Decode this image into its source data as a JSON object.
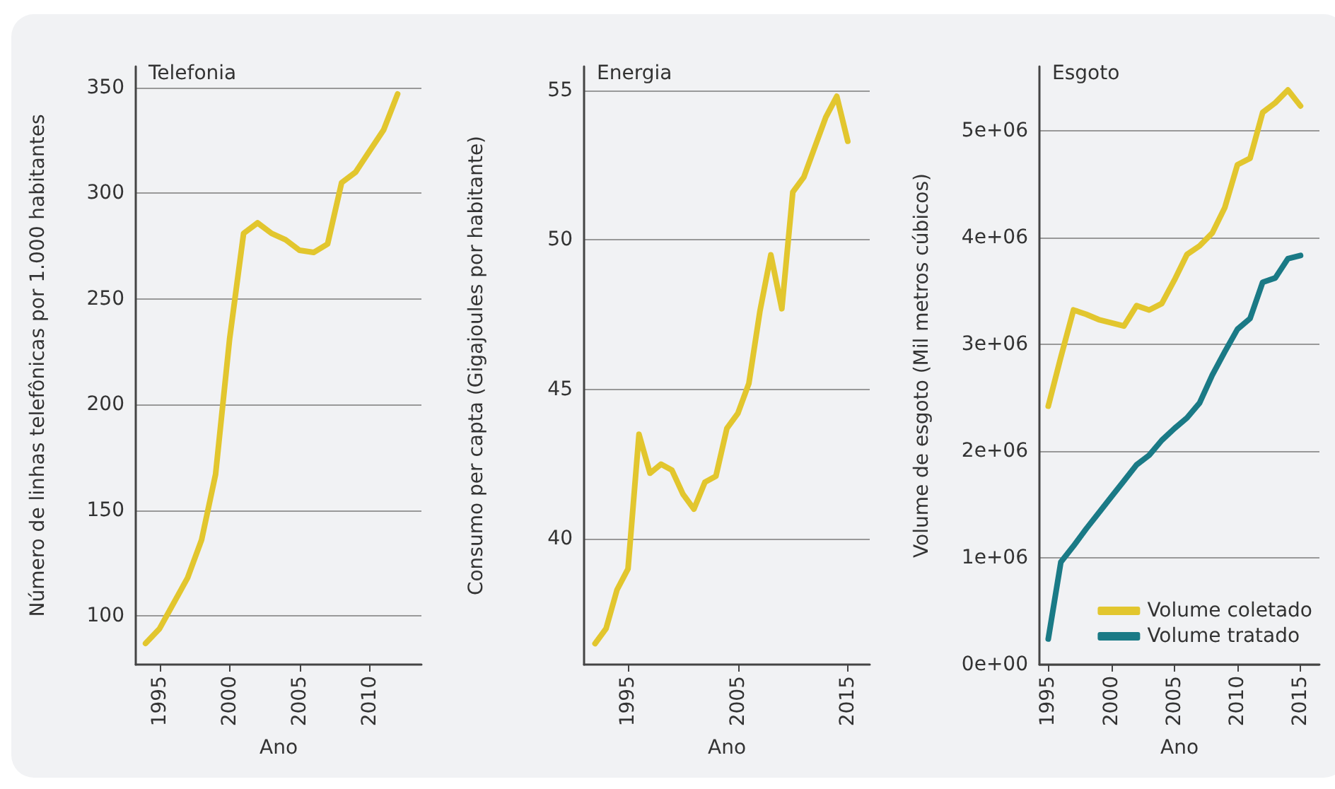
{
  "chart_data": [
    {
      "type": "line",
      "title": "Telefonia",
      "xlabel": "Ano",
      "ylabel": "Número de linhas telefônicas por 1.000 habitantes",
      "x": [
        1994,
        1995,
        1996,
        1997,
        1998,
        1999,
        2000,
        2001,
        2002,
        2003,
        2004,
        2005,
        2006,
        2007,
        2008,
        2009,
        2010,
        2011,
        2012
      ],
      "series": [
        {
          "color": "#e2c62e",
          "values": [
            87,
            94,
            106,
            118,
            136,
            167,
            231,
            281,
            286,
            281,
            278,
            273,
            272,
            276,
            305,
            310,
            320,
            330,
            347
          ]
        }
      ],
      "xlim": [
        1993.3,
        2013.7
      ],
      "xticks": [
        1995,
        2000,
        2005,
        2010
      ],
      "ylim": [
        77,
        360
      ],
      "yticks": [
        100,
        150,
        200,
        250,
        300,
        350
      ],
      "grid": "y",
      "legend": false
    },
    {
      "type": "line",
      "title": "Energia",
      "xlabel": "Ano",
      "ylabel": "Consumo per capta (Gigajoules por habitante)",
      "x": [
        1992,
        1993,
        1994,
        1995,
        1996,
        1997,
        1998,
        1999,
        2000,
        2001,
        2002,
        2003,
        2004,
        2005,
        2006,
        2007,
        2008,
        2009,
        2010,
        2011,
        2012,
        2013,
        2014,
        2015
      ],
      "series": [
        {
          "color": "#e2c62e",
          "values": [
            36.5,
            37.0,
            38.3,
            39.0,
            43.5,
            42.2,
            42.5,
            42.3,
            41.5,
            41.0,
            41.9,
            42.1,
            43.7,
            44.2,
            45.2,
            47.6,
            49.5,
            47.7,
            51.6,
            52.1,
            53.1,
            54.1,
            54.8,
            53.3
          ]
        }
      ],
      "xlim": [
        1991,
        2017
      ],
      "xticks": [
        1995,
        2005,
        2015
      ],
      "ylim": [
        35.8,
        55.8
      ],
      "yticks": [
        40,
        45,
        50,
        55
      ],
      "grid": "y",
      "legend": false
    },
    {
      "type": "line",
      "title": "Esgoto",
      "xlabel": "Ano",
      "ylabel": "Volume de esgoto (Mil metros cúbicos)",
      "x": [
        1995,
        1996,
        1997,
        1998,
        1999,
        2000,
        2001,
        2002,
        2003,
        2004,
        2005,
        2006,
        2007,
        2008,
        2009,
        2010,
        2011,
        2012,
        2013,
        2014,
        2015
      ],
      "series": [
        {
          "name": "Volume coletado",
          "color": "#e2c62e",
          "values": [
            2420000,
            2880000,
            3320000,
            3280000,
            3230000,
            3200000,
            3170000,
            3360000,
            3320000,
            3380000,
            3600000,
            3840000,
            3920000,
            4040000,
            4280000,
            4680000,
            4740000,
            5170000,
            5260000,
            5380000,
            5230000
          ]
        },
        {
          "name": "Volume tratado",
          "color": "#1a7a86",
          "values": [
            240000,
            960000,
            1110000,
            1270000,
            1420000,
            1570000,
            1720000,
            1870000,
            1960000,
            2100000,
            2210000,
            2310000,
            2450000,
            2710000,
            2930000,
            3140000,
            3240000,
            3580000,
            3620000,
            3800000,
            3830000
          ]
        }
      ],
      "xlim": [
        1994.3,
        2016.5
      ],
      "xticks": [
        1995,
        2000,
        2005,
        2010,
        2015
      ],
      "ylim": [
        0,
        5600000
      ],
      "yticks": [
        {
          "value": 0,
          "label": "0e+00"
        },
        {
          "value": 1000000,
          "label": "1e+06"
        },
        {
          "value": 2000000,
          "label": "2e+06"
        },
        {
          "value": 3000000,
          "label": "3e+06"
        },
        {
          "value": 4000000,
          "label": "4e+06"
        },
        {
          "value": 5000000,
          "label": "5e+06"
        }
      ],
      "grid": "y",
      "legend": "bottom right"
    }
  ]
}
